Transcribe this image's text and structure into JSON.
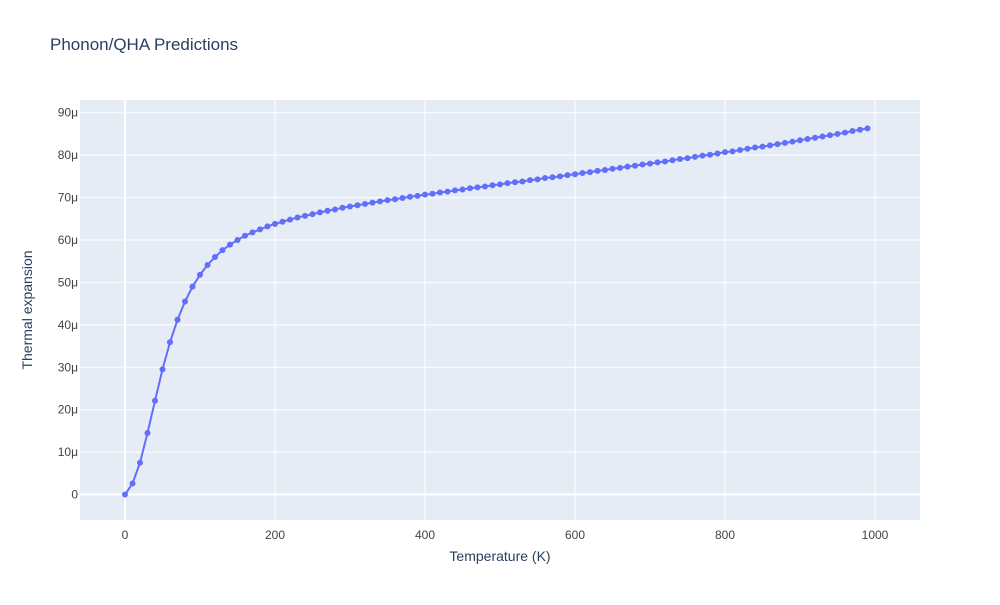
{
  "chart_data": {
    "type": "line",
    "title": "Phonon/QHA Predictions",
    "xlabel": "Temperature (K)",
    "ylabel": "Thermal expansion",
    "xlim": [
      -60,
      1060
    ],
    "ylim": [
      -6e-06,
      9.3e-05
    ],
    "x_ticks": [
      0,
      200,
      400,
      600,
      800,
      1000
    ],
    "x_tick_labels": [
      "0",
      "200",
      "400",
      "600",
      "800",
      "1000"
    ],
    "y_ticks": [
      0,
      1e-05,
      2e-05,
      3e-05,
      4e-05,
      5e-05,
      6e-05,
      7e-05,
      8e-05,
      9e-05
    ],
    "y_tick_labels": [
      "0",
      "10μ",
      "20μ",
      "30μ",
      "40μ",
      "50μ",
      "60μ",
      "70μ",
      "80μ",
      "90μ"
    ],
    "grid": true,
    "legend": "none",
    "colors": {
      "series": "#636efa",
      "plot_bg": "#e5ecf6",
      "grid": "#ffffff",
      "text": "#2a3f5f",
      "tick_text": "#444444"
    },
    "series": [
      {
        "mode": "lines+markers",
        "x": [
          0,
          10,
          20,
          30,
          40,
          50,
          60,
          70,
          80,
          90,
          100,
          110,
          120,
          130,
          140,
          150,
          160,
          170,
          180,
          190,
          200,
          210,
          220,
          230,
          240,
          250,
          260,
          270,
          280,
          290,
          300,
          310,
          320,
          330,
          340,
          350,
          360,
          370,
          380,
          390,
          400,
          410,
          420,
          430,
          440,
          450,
          460,
          470,
          480,
          490,
          500,
          510,
          520,
          530,
          540,
          550,
          560,
          570,
          580,
          590,
          600,
          610,
          620,
          630,
          640,
          650,
          660,
          670,
          680,
          690,
          700,
          710,
          720,
          730,
          740,
          750,
          760,
          770,
          780,
          790,
          800,
          810,
          820,
          830,
          840,
          850,
          860,
          870,
          880,
          890,
          900,
          910,
          920,
          930,
          940,
          950,
          960,
          970,
          980,
          990
        ],
        "y": [
          0,
          2.6e-06,
          7.5e-06,
          1.45e-05,
          2.21e-05,
          2.95e-05,
          3.59e-05,
          4.12e-05,
          4.55e-05,
          4.9e-05,
          5.18e-05,
          5.41e-05,
          5.6e-05,
          5.76e-05,
          5.89e-05,
          6e-05,
          6.1e-05,
          6.18e-05,
          6.25e-05,
          6.32e-05,
          6.38e-05,
          6.43e-05,
          6.48e-05,
          6.53e-05,
          6.57e-05,
          6.61e-05,
          6.65e-05,
          6.69e-05,
          6.72e-05,
          6.76e-05,
          6.79e-05,
          6.82e-05,
          6.85e-05,
          6.88e-05,
          6.91e-05,
          6.94e-05,
          6.96e-05,
          6.99e-05,
          7.02e-05,
          7.04e-05,
          7.07e-05,
          7.09e-05,
          7.12e-05,
          7.14e-05,
          7.17e-05,
          7.19e-05,
          7.22e-05,
          7.24e-05,
          7.26e-05,
          7.29e-05,
          7.31e-05,
          7.34e-05,
          7.36e-05,
          7.38e-05,
          7.41e-05,
          7.43e-05,
          7.46e-05,
          7.48e-05,
          7.5e-05,
          7.53e-05,
          7.55e-05,
          7.58e-05,
          7.6e-05,
          7.63e-05,
          7.65e-05,
          7.68e-05,
          7.7e-05,
          7.73e-05,
          7.75e-05,
          7.78e-05,
          7.8e-05,
          7.83e-05,
          7.85e-05,
          7.88e-05,
          7.91e-05,
          7.93e-05,
          7.96e-05,
          7.99e-05,
          8.01e-05,
          8.04e-05,
          8.07e-05,
          8.09e-05,
          8.12e-05,
          8.15e-05,
          8.18e-05,
          8.2e-05,
          8.23e-05,
          8.26e-05,
          8.29e-05,
          8.32e-05,
          8.35e-05,
          8.38e-05,
          8.41e-05,
          8.44e-05,
          8.47e-05,
          8.5e-05,
          8.53e-05,
          8.57e-05,
          8.6e-05,
          8.63e-05
        ]
      }
    ]
  }
}
